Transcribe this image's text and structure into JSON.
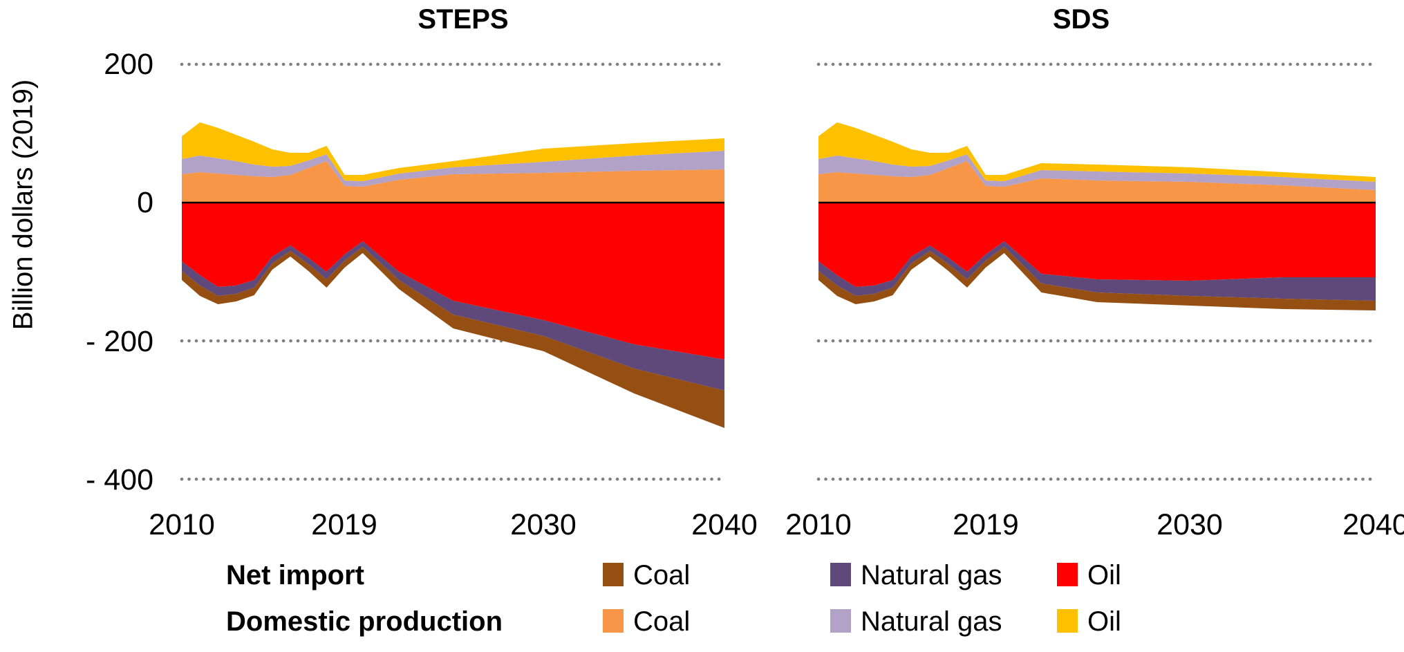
{
  "y_axis": {
    "title": "Billion dollars (2019)",
    "tick_labels": [
      "200",
      "0",
      "- 200",
      "- 400"
    ],
    "tick_values": [
      200,
      0,
      -200,
      -400
    ]
  },
  "x_axis": {
    "tick_labels": [
      "2010",
      "2019",
      "2030",
      "2040"
    ],
    "tick_years": [
      2010,
      2019,
      2030,
      2040
    ]
  },
  "legend": {
    "rows": [
      {
        "label": "Net import",
        "items": [
          {
            "name": "Coal",
            "color": "#964F12"
          },
          {
            "name": "Natural gas",
            "color": "#5F497A"
          },
          {
            "name": "Oil",
            "color": "#FF0000"
          }
        ]
      },
      {
        "label": "Domestic production",
        "items": [
          {
            "name": "Coal",
            "color": "#F79646"
          },
          {
            "name": "Natural gas",
            "color": "#B3A2C7"
          },
          {
            "name": "Oil",
            "color": "#FFC000"
          }
        ]
      }
    ]
  },
  "colors": {
    "grid": "#7F7F7F",
    "zero_line": "#000000",
    "net_import_coal": "#964F12",
    "net_import_gas": "#5F497A",
    "net_import_oil": "#FF0000",
    "domestic_coal": "#F79646",
    "domestic_gas": "#B3A2C7",
    "domestic_oil": "#FFC000"
  },
  "chart_data": {
    "type": "area",
    "stacked": true,
    "unit": "Billion dollars (2019)",
    "x_range": [
      2010,
      2040
    ],
    "y_range": [
      -400,
      200
    ],
    "grid_values": [
      200,
      -200,
      -400
    ],
    "grid_style": "dotted",
    "zero_axis": true,
    "legend_position": "bottom",
    "years": [
      2010,
      2011,
      2012,
      2013,
      2014,
      2015,
      2016,
      2017,
      2018,
      2019,
      2020,
      2022,
      2025,
      2030,
      2035,
      2040
    ],
    "charts": [
      {
        "title": "STEPS",
        "positive": [
          {
            "name": "Domestic production Coal",
            "color": "#F79646",
            "values": [
              41,
              44,
              42,
              40,
              38,
              37,
              40,
              50,
              60,
              24,
              23,
              33,
              41,
              43,
              46,
              48
            ]
          },
          {
            "name": "Domestic production Natural gas",
            "color": "#B3A2C7",
            "values": [
              22,
              24,
              22,
              20,
              17,
              15,
              13,
              11,
              10,
              8,
              8,
              9,
              10,
              16,
              22,
              27
            ]
          },
          {
            "name": "Domestic production Oil",
            "color": "#FFC000",
            "values": [
              33,
              48,
              44,
              38,
              33,
              25,
              19,
              11,
              12,
              8,
              9,
              8,
              9,
              19,
              18,
              18
            ]
          }
        ],
        "negative": [
          {
            "name": "Net import Oil",
            "color": "#FF0000",
            "values": [
              -85,
              -105,
              -122,
              -120,
              -112,
              -78,
              -62,
              -80,
              -100,
              -75,
              -56,
              -100,
              -142,
              -170,
              -205,
              -227
            ]
          },
          {
            "name": "Net import Natural gas",
            "color": "#5F497A",
            "values": [
              -14,
              -15,
              -13,
              -12,
              -11,
              -10,
              -8,
              -9,
              -11,
              -9,
              -8,
              -12,
              -20,
              -23,
              -35,
              -45
            ]
          },
          {
            "name": "Net import Coal",
            "color": "#964F12",
            "values": [
              -13,
              -15,
              -12,
              -11,
              -11,
              -9,
              -8,
              -10,
              -12,
              -10,
              -9,
              -13,
              -20,
              -22,
              -36,
              -54
            ]
          }
        ]
      },
      {
        "title": "SDS",
        "positive": [
          {
            "name": "Domestic production Coal",
            "color": "#F79646",
            "values": [
              41,
              44,
              42,
              40,
              38,
              37,
              40,
              50,
              60,
              24,
              23,
              35,
              32,
              30,
              25,
              18
            ]
          },
          {
            "name": "Domestic production Natural gas",
            "color": "#B3A2C7",
            "values": [
              22,
              24,
              22,
              20,
              17,
              15,
              13,
              11,
              10,
              8,
              8,
              12,
              13,
              12,
              12,
              12
            ]
          },
          {
            "name": "Domestic production Oil",
            "color": "#FFC000",
            "values": [
              33,
              48,
              44,
              38,
              33,
              25,
              19,
              11,
              12,
              8,
              9,
              10,
              10,
              9,
              7,
              7
            ]
          }
        ],
        "negative": [
          {
            "name": "Net import Oil",
            "color": "#FF0000",
            "values": [
              -85,
              -105,
              -122,
              -120,
              -112,
              -78,
              -62,
              -80,
              -100,
              -75,
              -56,
              -103,
              -111,
              -113,
              -108,
              -108
            ]
          },
          {
            "name": "Net import Natural gas",
            "color": "#5F497A",
            "values": [
              -14,
              -15,
              -13,
              -12,
              -11,
              -10,
              -8,
              -9,
              -11,
              -9,
              -8,
              -14,
              -19,
              -22,
              -31,
              -34
            ]
          },
          {
            "name": "Net import Coal",
            "color": "#964F12",
            "values": [
              -13,
              -15,
              -12,
              -11,
              -11,
              -9,
              -8,
              -10,
              -12,
              -10,
              -9,
              -13,
              -14,
              -14,
              -15,
              -14
            ]
          }
        ]
      }
    ]
  }
}
